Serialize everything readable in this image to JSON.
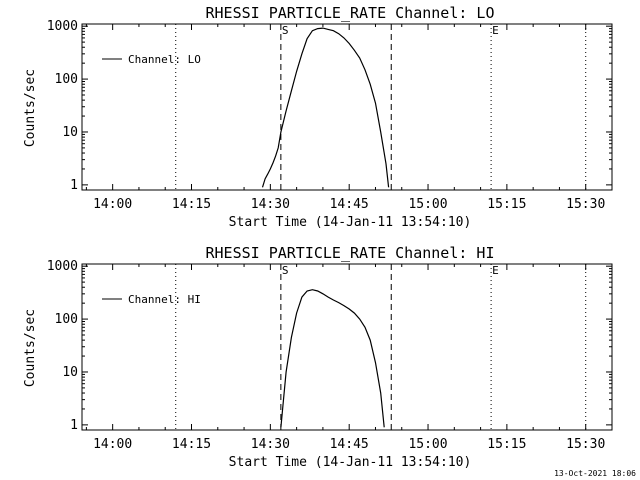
{
  "footer": {
    "timestamp": "13-Oct-2021 18:06"
  },
  "chart_data": [
    {
      "type": "line",
      "title": "RHESSI PARTICLE_RATE Channel: LO",
      "xlabel": "Start Time (14-Jan-11 13:54:10)",
      "ylabel": "Counts/sec",
      "yscale": "log",
      "ylim": [
        0.8,
        1100
      ],
      "xlim_minutes_clock": [
        "13:54:10",
        "15:35:00"
      ],
      "xticks": [
        "14:00",
        "14:15",
        "14:30",
        "14:45",
        "15:00",
        "15:15",
        "15:30"
      ],
      "yticks": [
        "1",
        "10",
        "100",
        "1000"
      ],
      "legend": {
        "label": "Channel: LO",
        "position": "top-left"
      },
      "markers": [
        {
          "label": "S",
          "time": "14:32:00",
          "style": "dashed"
        },
        {
          "label": "",
          "time": "14:53:00",
          "style": "dashed"
        },
        {
          "label": "",
          "time": "14:12:00",
          "style": "dotted"
        },
        {
          "label": "E",
          "time": "15:12:00",
          "style": "dotted"
        },
        {
          "label": "",
          "time": "15:30:00",
          "style": "dotted"
        }
      ],
      "series": [
        {
          "name": "Channel: LO",
          "points": [
            [
              "14:28:30",
              0.9
            ],
            [
              "14:29:00",
              1.3
            ],
            [
              "14:29:30",
              1.6
            ],
            [
              "14:30:00",
              2.0
            ],
            [
              "14:30:30",
              2.6
            ],
            [
              "14:31:00",
              3.5
            ],
            [
              "14:31:30",
              5.0
            ],
            [
              "14:32:00",
              10
            ],
            [
              "14:33:00",
              25
            ],
            [
              "14:34:00",
              60
            ],
            [
              "14:35:00",
              140
            ],
            [
              "14:36:00",
              300
            ],
            [
              "14:37:00",
              580
            ],
            [
              "14:38:00",
              820
            ],
            [
              "14:39:00",
              900
            ],
            [
              "14:40:00",
              920
            ],
            [
              "14:41:00",
              870
            ],
            [
              "14:42:00",
              820
            ],
            [
              "14:43:00",
              720
            ],
            [
              "14:44:00",
              600
            ],
            [
              "14:45:00",
              470
            ],
            [
              "14:46:00",
              350
            ],
            [
              "14:47:00",
              250
            ],
            [
              "14:48:00",
              150
            ],
            [
              "14:49:00",
              80
            ],
            [
              "14:50:00",
              35
            ],
            [
              "14:51:00",
              10
            ],
            [
              "14:52:00",
              2.5
            ],
            [
              "14:52:30",
              0.9
            ]
          ]
        }
      ]
    },
    {
      "type": "line",
      "title": "RHESSI PARTICLE_RATE Channel: HI",
      "xlabel": "Start Time (14-Jan-11 13:54:10)",
      "ylabel": "Counts/sec",
      "yscale": "log",
      "ylim": [
        0.8,
        1100
      ],
      "xlim_minutes_clock": [
        "13:54:10",
        "15:35:00"
      ],
      "xticks": [
        "14:00",
        "14:15",
        "14:30",
        "14:45",
        "15:00",
        "15:15",
        "15:30"
      ],
      "yticks": [
        "1",
        "10",
        "100",
        "1000"
      ],
      "legend": {
        "label": "Channel: HI",
        "position": "top-left"
      },
      "markers": [
        {
          "label": "S",
          "time": "14:32:00",
          "style": "dashed"
        },
        {
          "label": "",
          "time": "14:53:00",
          "style": "dashed"
        },
        {
          "label": "",
          "time": "14:12:00",
          "style": "dotted"
        },
        {
          "label": "E",
          "time": "15:12:00",
          "style": "dotted"
        },
        {
          "label": "",
          "time": "15:30:00",
          "style": "dotted"
        }
      ],
      "series": [
        {
          "name": "Channel: HI",
          "points": [
            [
              "14:32:00",
              0.9
            ],
            [
              "14:32:30",
              3
            ],
            [
              "14:33:00",
              10
            ],
            [
              "14:34:00",
              45
            ],
            [
              "14:35:00",
              130
            ],
            [
              "14:36:00",
              260
            ],
            [
              "14:37:00",
              340
            ],
            [
              "14:38:00",
              360
            ],
            [
              "14:39:00",
              340
            ],
            [
              "14:40:00",
              300
            ],
            [
              "14:41:00",
              260
            ],
            [
              "14:42:00",
              230
            ],
            [
              "14:43:00",
              205
            ],
            [
              "14:44:00",
              180
            ],
            [
              "14:45:00",
              155
            ],
            [
              "14:46:00",
              130
            ],
            [
              "14:47:00",
              100
            ],
            [
              "14:48:00",
              70
            ],
            [
              "14:49:00",
              40
            ],
            [
              "14:50:00",
              15
            ],
            [
              "14:51:00",
              4
            ],
            [
              "14:51:40",
              0.9
            ]
          ]
        }
      ]
    }
  ]
}
